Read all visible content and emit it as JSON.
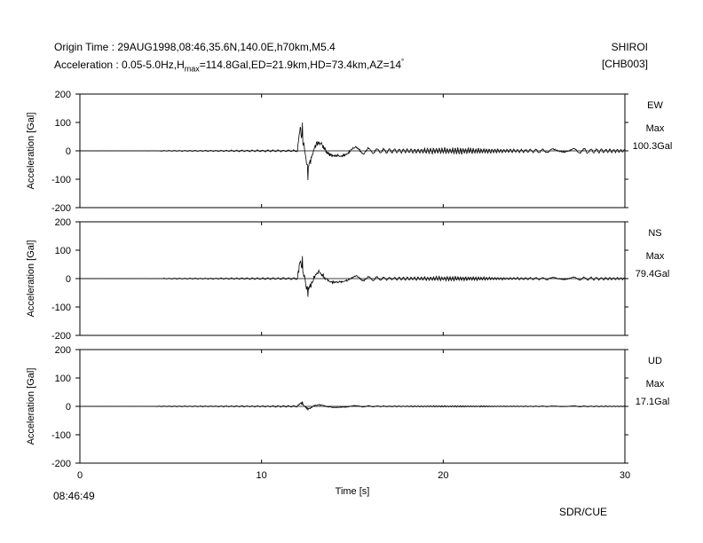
{
  "header": {
    "origin_line": "Origin Time : 29AUG1998,08:46,35.6N,140.0E,h70km,M5.4",
    "accel_prefix": "Acceleration : 0.05-5.0Hz,H",
    "accel_sub": "max",
    "accel_suffix": "=114.8Gal,ED=21.9km,HD=73.4km,AZ=14",
    "accel_sup": "°",
    "station": "SHIROI",
    "station_code": "[CHB003]"
  },
  "footer": {
    "start_time": "08:46:49",
    "credit": "SDR/CUE"
  },
  "chart_data": {
    "type": "line",
    "xlabel": "Time [s]",
    "xlim": [
      0,
      30
    ],
    "xticks": [
      0,
      10,
      20,
      30
    ],
    "ylabel": "Acceleration [Gal]",
    "ylim": [
      -200,
      200
    ],
    "yticks": [
      200,
      100,
      0,
      -100,
      -200
    ],
    "panels": [
      {
        "component": "EW",
        "max_label": "Max",
        "max_value": "100.3Gal",
        "max_gal": 100.3,
        "onset_s": 4.4,
        "p_amp": 4,
        "s_arrival_s": 12.0,
        "s_peak": 100,
        "s_min": -103,
        "coda_amp": 18
      },
      {
        "component": "NS",
        "max_label": "Max",
        "max_value": "79.4Gal",
        "max_gal": 79.4,
        "onset_s": 4.6,
        "p_amp": 4,
        "s_arrival_s": 12.0,
        "s_peak": 79,
        "s_min": -64,
        "coda_amp": 12
      },
      {
        "component": "UD",
        "max_label": "Max",
        "max_value": "17.1Gal",
        "max_gal": 17.1,
        "onset_s": 4.2,
        "p_amp": 3,
        "s_arrival_s": 12.0,
        "s_peak": 17,
        "s_min": -14,
        "coda_amp": 4
      }
    ]
  }
}
